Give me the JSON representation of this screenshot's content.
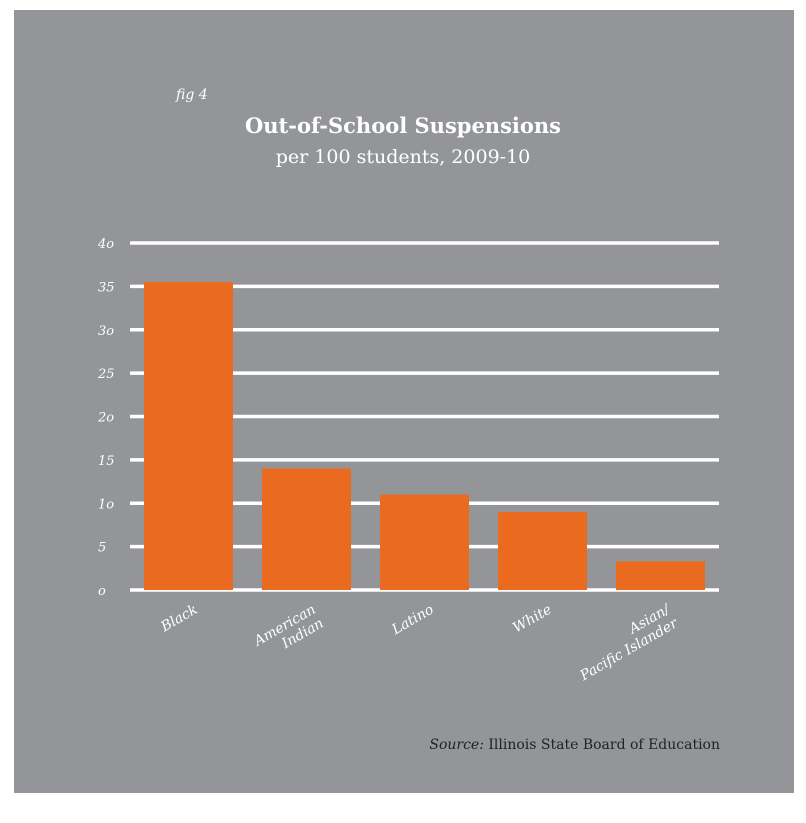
{
  "figure": {
    "label": "fig 4"
  },
  "chart_data": {
    "type": "bar",
    "title": "Out-of-School Suspensions",
    "subtitle": "per 100 students, 2009-10",
    "categories": [
      "Black",
      "American Indian",
      "Latino",
      "White",
      "Asian/ Pacific Islander"
    ],
    "category_lines": [
      [
        "Black"
      ],
      [
        "American",
        "Indian"
      ],
      [
        "Latino"
      ],
      [
        "White"
      ],
      [
        "Asian/",
        "Pacific Islander"
      ]
    ],
    "values": [
      35.5,
      14,
      11,
      9,
      3.3
    ],
    "ylim": [
      0,
      40
    ],
    "yticks": [
      0,
      5,
      10,
      15,
      20,
      25,
      30,
      35,
      40
    ],
    "ytick_labels": [
      "o",
      "5",
      "1o",
      "15",
      "2o",
      "25",
      "3o",
      "35",
      "4o"
    ],
    "xlabel": "",
    "ylabel": "",
    "grid": true,
    "bar_color": "#ea6a1f",
    "grid_color": "#ffffff",
    "background_color": "#939598"
  },
  "source": {
    "label": "Source:",
    "text": "Illinois State Board of Education"
  }
}
